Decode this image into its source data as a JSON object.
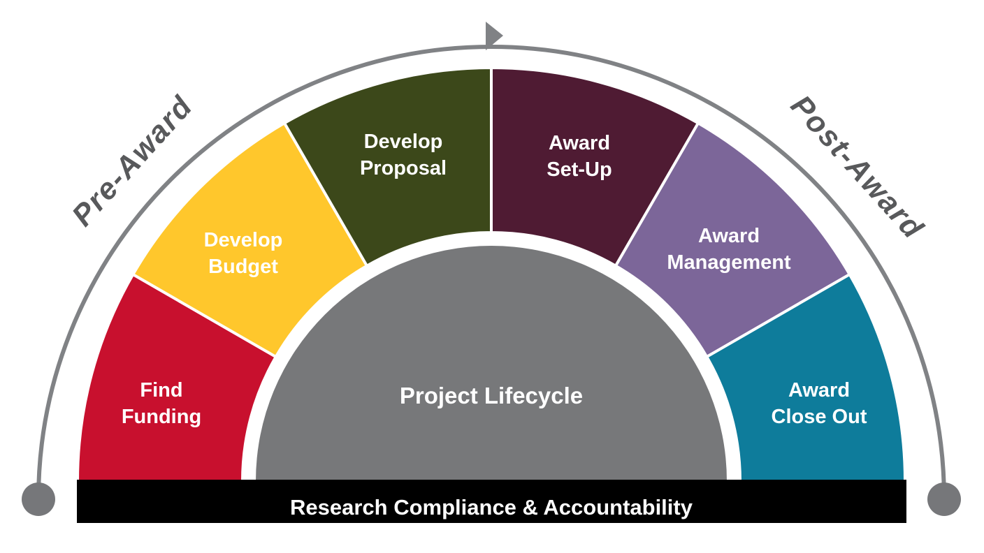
{
  "diagram": {
    "pre_award_label": "Pre-Award",
    "post_award_label": "Post-Award",
    "center_label": "Project Lifecycle",
    "bottom_bar_label": "Research Compliance & Accountability",
    "segments": [
      {
        "name": "find-funding",
        "label_lines": [
          "Find",
          "Funding"
        ],
        "color": "#C8102E"
      },
      {
        "name": "develop-budget",
        "label_lines": [
          "Develop",
          "Budget"
        ],
        "color": "#FFC72C"
      },
      {
        "name": "develop-proposal",
        "label_lines": [
          "Develop",
          "Proposal"
        ],
        "color": "#3C481A"
      },
      {
        "name": "award-set-up",
        "label_lines": [
          "Award",
          "Set-Up"
        ],
        "color": "#4F1B33"
      },
      {
        "name": "award-management",
        "label_lines": [
          "Award",
          "Management"
        ],
        "color": "#7C6699"
      },
      {
        "name": "award-close-out",
        "label_lines": [
          "Award",
          "Close Out"
        ],
        "color": "#0E7C9B"
      }
    ],
    "colors": {
      "inner_circle": "#77787A",
      "arc_line": "#808285",
      "arc_dots": "#76777A",
      "arrow": "#808285",
      "phase_text": "#58595B",
      "segment_text": "#FFFFFF",
      "center_text": "#FFFFFF",
      "bottom_bar_bg": "#000000",
      "bottom_bar_text": "#FFFFFF",
      "background": "#FFFFFF",
      "divider": "#FFFFFF"
    }
  }
}
